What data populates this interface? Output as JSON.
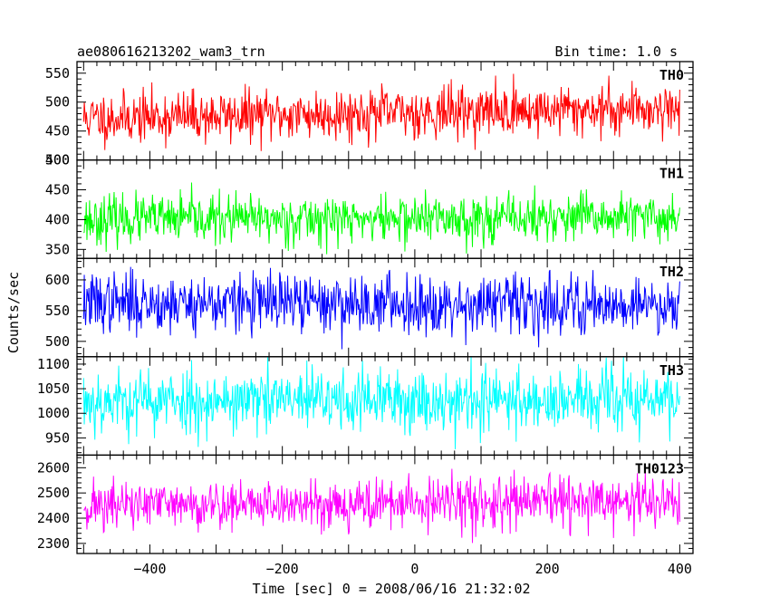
{
  "header": {
    "title": "ae080616213202_wam3_trn",
    "bin_time": "Bin time: 1.0 s"
  },
  "chart_data": {
    "type": "line",
    "title": "ae080616213202_wam3_trn",
    "subtitle": "Bin time: 1.0 s",
    "xlabel": "Time [sec] 0 = 2008/06/16 21:32:02",
    "ylabel": "Counts/sec",
    "xlim": [
      -510,
      420
    ],
    "data_x_range": [
      -500,
      400
    ],
    "x_step": 1,
    "xticks": [
      -400,
      -200,
      0,
      200,
      400
    ],
    "xtick_labels": [
      "−400",
      "−200",
      "0",
      "200",
      "400"
    ],
    "grid": false,
    "panels": [
      {
        "name": "TH0",
        "color": "#ff0000",
        "ylim": [
          400,
          570
        ],
        "yticks": [
          400,
          450,
          500,
          550
        ],
        "ytick_labels": [
          "400",
          "450",
          "500",
          "550"
        ],
        "mean_start": 472,
        "mean_end": 490,
        "spread": 22,
        "seed": 11
      },
      {
        "name": "TH1",
        "color": "#00ff00",
        "ylim": [
          335,
          500
        ],
        "yticks": [
          350,
          400,
          450,
          500
        ],
        "ytick_labels": [
          "350",
          "400",
          "450",
          "500"
        ],
        "mean_start": 400,
        "mean_end": 403,
        "spread": 20,
        "seed": 23
      },
      {
        "name": "TH2",
        "color": "#0000ff",
        "ylim": [
          475,
          635
        ],
        "yticks": [
          500,
          550,
          600
        ],
        "ytick_labels": [
          "500",
          "550",
          "600"
        ],
        "mean_start": 563,
        "mean_end": 560,
        "spread": 24,
        "seed": 37
      },
      {
        "name": "TH3",
        "color": "#00ffff",
        "ylim": [
          915,
          1115
        ],
        "yticks": [
          950,
          1000,
          1050,
          1100
        ],
        "ytick_labels": [
          "950",
          "1000",
          "1050",
          "1100"
        ],
        "mean_start": 1025,
        "mean_end": 1027,
        "spread": 33,
        "seed": 53
      },
      {
        "name": "TH0123",
        "color": "#ff00ff",
        "ylim": [
          2260,
          2650
        ],
        "yticks": [
          2300,
          2400,
          2500,
          2600
        ],
        "ytick_labels": [
          "2300",
          "2400",
          "2500",
          "2600"
        ],
        "mean_start": 2450,
        "mean_end": 2465,
        "spread": 50,
        "seed": 71
      }
    ]
  }
}
